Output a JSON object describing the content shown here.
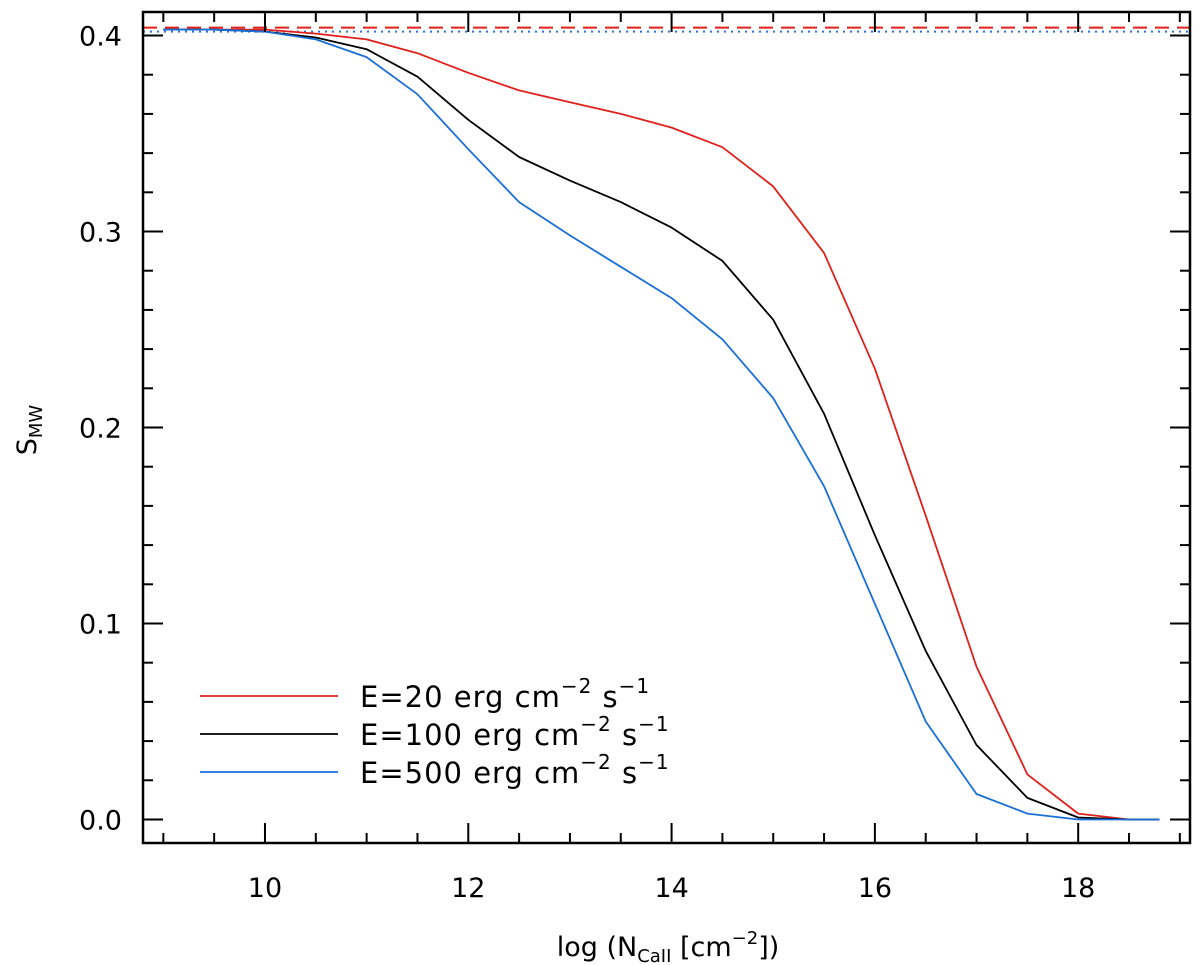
{
  "chart_data": {
    "type": "line",
    "xlabel": {
      "prefix": "log (N",
      "sub": "CaII",
      "mid": " [cm",
      "sup": "−2",
      "suffix": "])"
    },
    "ylabel": {
      "base": "S",
      "sub": "MW"
    },
    "xlim": [
      8.8,
      19.1
    ],
    "ylim": [
      -0.012,
      0.412
    ],
    "x_ticks": [
      10,
      12,
      14,
      16,
      18
    ],
    "x_tick_labels": [
      "10",
      "12",
      "14",
      "16",
      "18"
    ],
    "y_ticks": [
      0.0,
      0.1,
      0.2,
      0.3,
      0.4
    ],
    "y_tick_labels": [
      "0.0",
      "0.1",
      "0.2",
      "0.3",
      "0.4"
    ],
    "reference_lines": [
      {
        "name": "red-dashed",
        "y": 0.404,
        "color": "#e0201a",
        "style": "dashed"
      },
      {
        "name": "blue-dotted",
        "y": 0.402,
        "color": "#2b6fe0",
        "style": "dotted"
      }
    ],
    "series": [
      {
        "name": "E=20",
        "legend": {
          "base": "E=20 erg cm",
          "sup1": "−2",
          "mid": " s",
          "sup2": "−1"
        },
        "color": "#e0201a",
        "x": [
          9,
          9.5,
          10,
          10.5,
          11,
          11.5,
          12,
          12.5,
          13,
          13.5,
          14,
          14.5,
          15,
          15.5,
          16,
          16.5,
          17,
          17.5,
          18,
          18.5,
          18.8
        ],
        "y": [
          0.403,
          0.403,
          0.403,
          0.401,
          0.398,
          0.391,
          0.381,
          0.372,
          0.366,
          0.36,
          0.353,
          0.343,
          0.323,
          0.289,
          0.23,
          0.155,
          0.078,
          0.023,
          0.003,
          0.0,
          0.0
        ]
      },
      {
        "name": "E=100",
        "legend": {
          "base": "E=100 erg cm",
          "sup1": "−2",
          "mid": " s",
          "sup2": "−1"
        },
        "color": "#000000",
        "x": [
          9,
          9.5,
          10,
          10.5,
          11,
          11.5,
          12,
          12.5,
          13,
          13.5,
          14,
          14.5,
          15,
          15.5,
          16,
          16.5,
          17,
          17.5,
          18,
          18.5,
          18.8
        ],
        "y": [
          0.403,
          0.403,
          0.402,
          0.399,
          0.393,
          0.379,
          0.357,
          0.338,
          0.326,
          0.315,
          0.302,
          0.285,
          0.255,
          0.207,
          0.145,
          0.086,
          0.038,
          0.011,
          0.001,
          0.0,
          0.0
        ]
      },
      {
        "name": "E=500",
        "legend": {
          "base": "E=500 erg cm",
          "sup1": "−2",
          "mid": " s",
          "sup2": "−1"
        },
        "color": "#1a6fd8",
        "x": [
          9,
          9.5,
          10,
          10.5,
          11,
          11.5,
          12,
          12.5,
          13,
          13.5,
          14,
          14.5,
          15,
          15.5,
          16,
          16.5,
          17,
          17.5,
          18,
          18.5,
          18.8
        ],
        "y": [
          0.403,
          0.403,
          0.402,
          0.398,
          0.389,
          0.37,
          0.342,
          0.315,
          0.298,
          0.282,
          0.266,
          0.245,
          0.215,
          0.17,
          0.11,
          0.05,
          0.013,
          0.003,
          0.0,
          0.0,
          0.0
        ]
      }
    ]
  }
}
